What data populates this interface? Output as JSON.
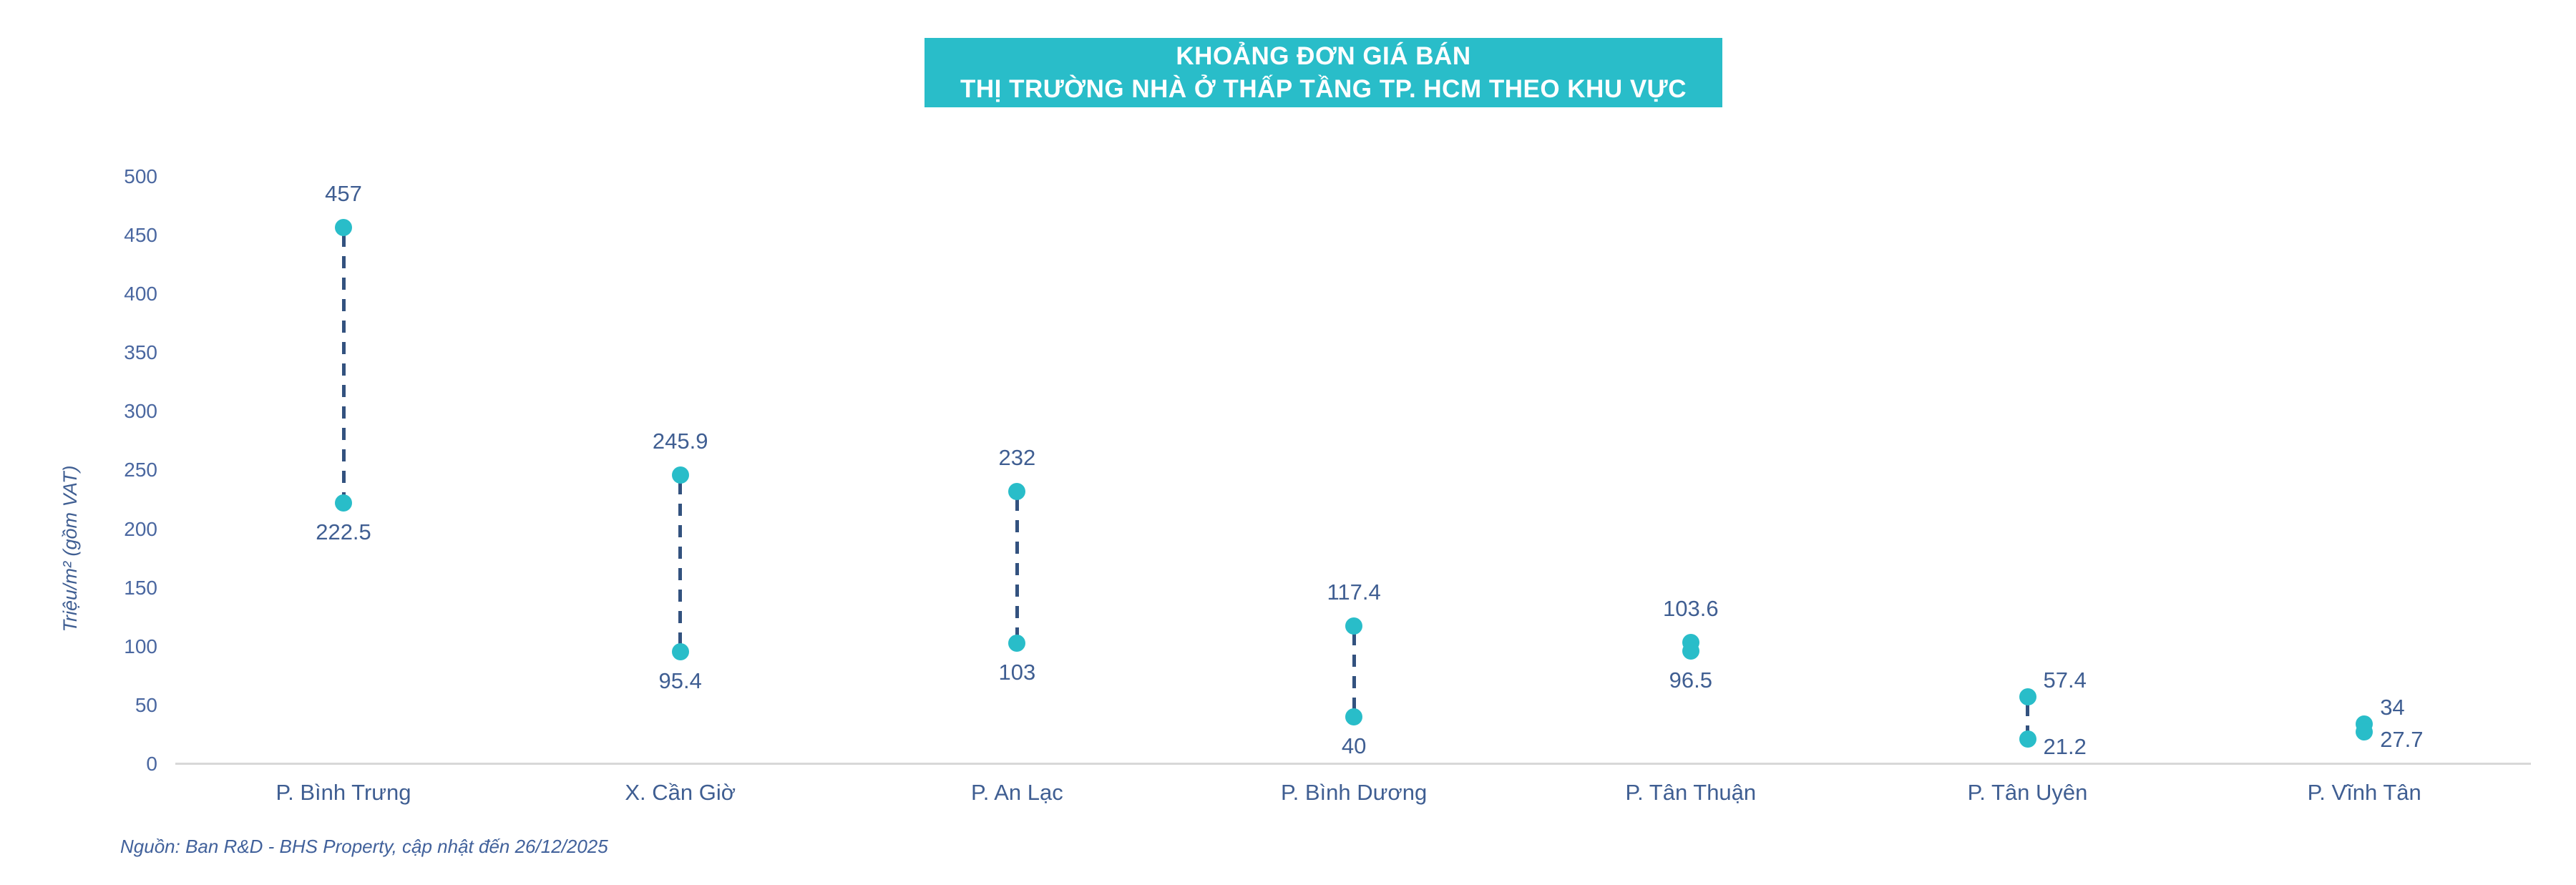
{
  "title": {
    "line1": "KHOẢNG ĐƠN GIÁ BÁN",
    "line2": "THỊ TRƯỜNG NHÀ Ở THẤP TẦNG TP. HCM THEO KHU VỰC"
  },
  "source": "Nguồn: Ban R&D - BHS Property, cập nhật đến 26/12/2025",
  "colors": {
    "accent_teal": "#29BDC9",
    "text_navy": "#3F5E92",
    "connector_navy": "#33527F",
    "axis_gray": "#D8D8D8",
    "title_text": "#FFFFFF"
  },
  "chart_data": {
    "type": "scatter",
    "subtype": "dumbbell-range",
    "title": "KHOẢNG ĐƠN GIÁ BÁN THỊ TRƯỜNG NHÀ Ở THẤP TẦNG TP. HCM THEO KHU VỰC",
    "xlabel": "",
    "ylabel": "Triệu/m² (gồm VAT)",
    "ylim": [
      0,
      500
    ],
    "ytick_step": 50,
    "yticks": [
      0,
      50,
      100,
      150,
      200,
      250,
      300,
      350,
      400,
      450,
      500
    ],
    "grid": false,
    "legend": "none",
    "categories": [
      "P. Bình Trưng",
      "X. Cần Giờ",
      "P. An Lạc",
      "P. Bình Dương",
      "P. Tân Thuận",
      "P. Tân Uyên",
      "P. Vĩnh Tân"
    ],
    "series": [
      {
        "name": "max",
        "values": [
          457,
          245.9,
          232,
          117.4,
          103.6,
          57.4,
          34
        ]
      },
      {
        "name": "min",
        "values": [
          222.5,
          95.4,
          103,
          40,
          96.5,
          21.2,
          27.7
        ]
      }
    ],
    "label_layout": [
      "above-below",
      "above-below",
      "above-below",
      "above-below",
      "above-below",
      "right",
      "right"
    ]
  }
}
